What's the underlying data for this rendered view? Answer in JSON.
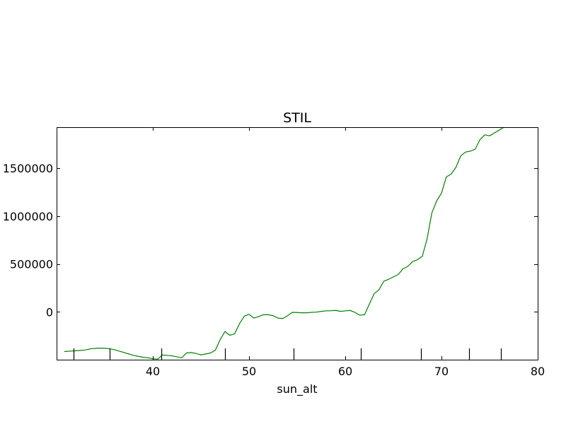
{
  "chart_data": {
    "type": "line",
    "title": "STIL",
    "xlabel": "sun_alt",
    "ylabel": "",
    "xlim": [
      30,
      80
    ],
    "ylim": [
      -500000,
      1930000
    ],
    "x_ticks": [
      40,
      50,
      60,
      70,
      80
    ],
    "x_tick_labels": [
      "40",
      "50",
      "60",
      "70",
      "80"
    ],
    "y_ticks": [
      0,
      500000,
      1000000,
      1500000
    ],
    "y_tick_labels": [
      "0",
      "500000",
      "1000000",
      "1500000"
    ],
    "rug_x": [
      31.8,
      35.5,
      40.9,
      47.5,
      54.6,
      61.6,
      67.9,
      72.9,
      76.2
    ],
    "grid": false,
    "series": [
      {
        "color": "#008000",
        "x": [
          30.8,
          31.5,
          32.2,
          32.9,
          33.6,
          34.3,
          35.0,
          35.5,
          36.0,
          36.5,
          37.0,
          37.5,
          38.0,
          38.5,
          39.0,
          39.5,
          40.0,
          40.5,
          41.0,
          41.5,
          42.0,
          42.5,
          43.0,
          43.5,
          44.0,
          44.5,
          45.0,
          45.5,
          46.0,
          46.5,
          47.0,
          47.5,
          48.0,
          48.5,
          49.0,
          49.5,
          50.0,
          50.5,
          51.0,
          51.5,
          52.0,
          52.5,
          53.0,
          53.5,
          54.0,
          54.5,
          55.0,
          55.5,
          56.0,
          56.5,
          57.0,
          57.5,
          58.0,
          58.5,
          59.0,
          59.5,
          60.0,
          60.5,
          61.0,
          61.5,
          62.0,
          62.5,
          63.0,
          63.5,
          64.0,
          64.5,
          65.0,
          65.5,
          66.0,
          66.5,
          67.0,
          67.5,
          68.0,
          68.5,
          69.0,
          69.5,
          70.0,
          70.5,
          71.0,
          71.5,
          72.0,
          72.5,
          73.0,
          73.5,
          74.0,
          74.5,
          75.0,
          75.5,
          76.0,
          76.5,
          77.0
        ],
        "y": [
          -415000,
          -410000,
          -405000,
          -400000,
          -385000,
          -380000,
          -380000,
          -385000,
          -395000,
          -410000,
          -425000,
          -440000,
          -455000,
          -465000,
          -475000,
          -480000,
          -490000,
          -495000,
          -450000,
          -455000,
          -460000,
          -470000,
          -480000,
          -430000,
          -425000,
          -435000,
          -450000,
          -440000,
          -430000,
          -400000,
          -290000,
          -205000,
          -245000,
          -230000,
          -125000,
          -45000,
          -25000,
          -65000,
          -50000,
          -30000,
          -30000,
          -40000,
          -65000,
          -70000,
          -40000,
          -5000,
          -7000,
          -10000,
          -10000,
          -5000,
          -3000,
          5000,
          10000,
          12000,
          15000,
          5000,
          10000,
          15000,
          -5000,
          -35000,
          -30000,
          80000,
          190000,
          230000,
          320000,
          340000,
          365000,
          390000,
          450000,
          475000,
          525000,
          545000,
          580000,
          760000,
          1035000,
          1160000,
          1240000,
          1410000,
          1440000,
          1510000,
          1630000,
          1670000,
          1680000,
          1700000,
          1800000,
          1850000,
          1840000,
          1870000,
          1900000,
          1930000,
          1930000
        ]
      }
    ]
  }
}
